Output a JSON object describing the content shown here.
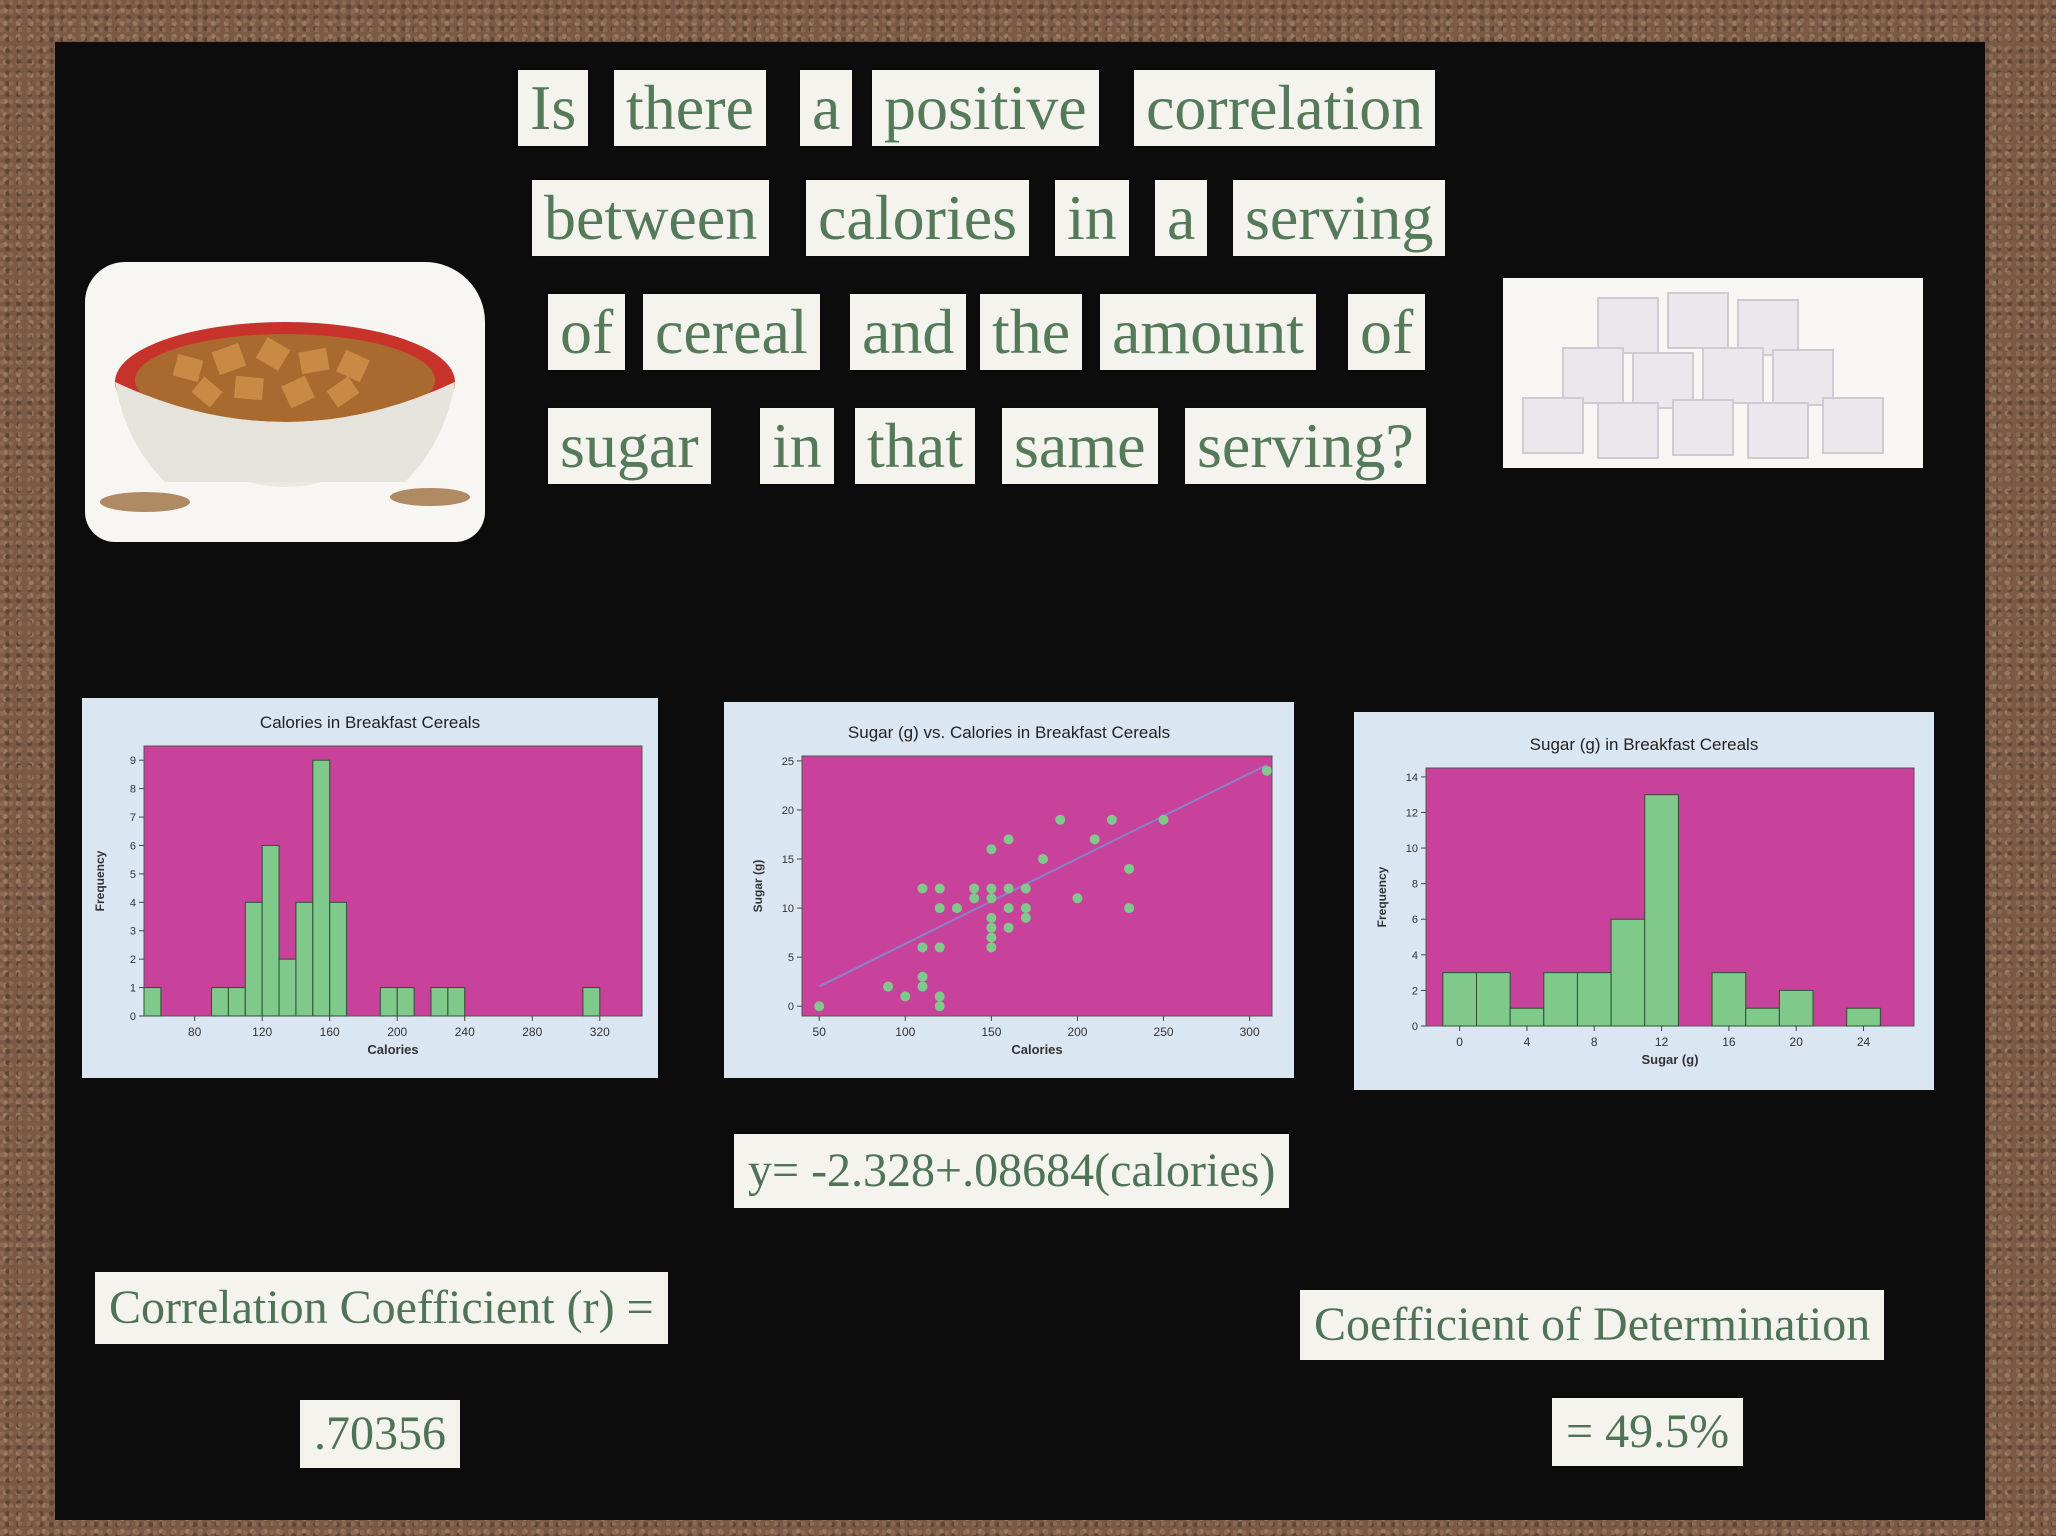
{
  "title_words": [
    [
      "Is",
      "there",
      "a",
      "positive",
      "correlation"
    ],
    [
      "between",
      "calories",
      "in",
      "a",
      "serving"
    ],
    [
      "of",
      "cereal",
      "and",
      "the",
      "amount",
      "of"
    ],
    [
      "sugar",
      "in",
      "that",
      "same",
      "serving?"
    ]
  ],
  "equation": "y= -2.328+.08684(calories)",
  "correlation_label": "Correlation Coefficient (r) =",
  "correlation_value": ".70356",
  "determination_label": "Coefficient of Determination",
  "determination_value": "= 49.5%",
  "colors": {
    "plot_bg": "#c8429b",
    "bar_fill": "#7fc98a",
    "panel_bg": "#dbe6f3",
    "text": "#557a5a",
    "fit_line": "#8a82c8"
  },
  "chart_data": [
    {
      "type": "bar",
      "title": "Calories in Breakfast Cereals",
      "xlabel": "Calories",
      "ylabel": "Frequency",
      "xticks": [
        80,
        120,
        160,
        200,
        240,
        280,
        320
      ],
      "yticks": [
        0,
        1,
        2,
        3,
        4,
        5,
        6,
        7,
        8,
        9
      ],
      "xlim": [
        50,
        345
      ],
      "ylim": [
        0,
        9.5
      ],
      "bin_width": 10,
      "bins": [
        {
          "x": 50,
          "value": 1
        },
        {
          "x": 90,
          "value": 1
        },
        {
          "x": 100,
          "value": 1
        },
        {
          "x": 110,
          "value": 4
        },
        {
          "x": 120,
          "value": 6
        },
        {
          "x": 130,
          "value": 2
        },
        {
          "x": 140,
          "value": 4
        },
        {
          "x": 150,
          "value": 9
        },
        {
          "x": 160,
          "value": 4
        },
        {
          "x": 190,
          "value": 1
        },
        {
          "x": 200,
          "value": 1
        },
        {
          "x": 220,
          "value": 1
        },
        {
          "x": 230,
          "value": 1
        },
        {
          "x": 310,
          "value": 1
        }
      ]
    },
    {
      "type": "scatter",
      "title": "Sugar (g) vs. Calories in Breakfast Cereals",
      "xlabel": "Calories",
      "ylabel": "Sugar (g)",
      "xticks": [
        50,
        100,
        150,
        200,
        250,
        300
      ],
      "yticks": [
        0,
        5,
        10,
        15,
        20,
        25
      ],
      "xlim": [
        40,
        313
      ],
      "ylim": [
        -1,
        25.5
      ],
      "points": [
        [
          50,
          0
        ],
        [
          90,
          2
        ],
        [
          100,
          1
        ],
        [
          110,
          2
        ],
        [
          110,
          3
        ],
        [
          120,
          0
        ],
        [
          120,
          1
        ],
        [
          110,
          6
        ],
        [
          120,
          6
        ],
        [
          110,
          12
        ],
        [
          120,
          12
        ],
        [
          130,
          10
        ],
        [
          120,
          10
        ],
        [
          140,
          11
        ],
        [
          140,
          12
        ],
        [
          150,
          6
        ],
        [
          150,
          7
        ],
        [
          150,
          8
        ],
        [
          150,
          9
        ],
        [
          150,
          11
        ],
        [
          150,
          12
        ],
        [
          150,
          16
        ],
        [
          160,
          12
        ],
        [
          160,
          10
        ],
        [
          160,
          8
        ],
        [
          170,
          12
        ],
        [
          170,
          9
        ],
        [
          170,
          10
        ],
        [
          160,
          17
        ],
        [
          180,
          15
        ],
        [
          190,
          19
        ],
        [
          200,
          11
        ],
        [
          210,
          17
        ],
        [
          230,
          10
        ],
        [
          230,
          14
        ],
        [
          250,
          19
        ],
        [
          220,
          19
        ],
        [
          310,
          24
        ]
      ],
      "fit_line": {
        "intercept": -2.328,
        "slope": 0.08684
      }
    },
    {
      "type": "bar",
      "title": "Sugar (g) in Breakfast Cereals",
      "xlabel": "Sugar (g)",
      "ylabel": "Frequency",
      "xticks": [
        0,
        4,
        8,
        12,
        16,
        20,
        24
      ],
      "yticks": [
        0,
        2,
        4,
        6,
        8,
        10,
        12,
        14
      ],
      "xlim": [
        -2,
        27
      ],
      "ylim": [
        0,
        14.5
      ],
      "bin_width": 2,
      "bins": [
        {
          "x": -1,
          "value": 3
        },
        {
          "x": 1,
          "value": 3
        },
        {
          "x": 3,
          "value": 1
        },
        {
          "x": 5,
          "value": 3
        },
        {
          "x": 7,
          "value": 3
        },
        {
          "x": 9,
          "value": 6
        },
        {
          "x": 11,
          "value": 13
        },
        {
          "x": 15,
          "value": 3
        },
        {
          "x": 17,
          "value": 1
        },
        {
          "x": 19,
          "value": 2
        },
        {
          "x": 23,
          "value": 1
        }
      ]
    }
  ]
}
